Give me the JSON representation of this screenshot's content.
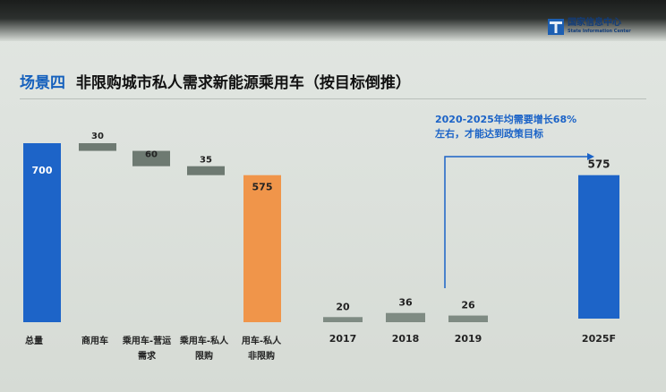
{
  "logo": {
    "name_cn": "国家信息中心",
    "name_en": "State Information Center"
  },
  "header": {
    "scene_label": "场景四",
    "title": "非限购城市私人需求新能源乘用车（按目标倒推）"
  },
  "note": {
    "line1": "2020-2025年均需要增长68%",
    "line2": "左右，才能达到政策目标"
  },
  "colors": {
    "total_bar": "#1d64c8",
    "step_bar": "#6e7a72",
    "result_bar": "#f0954a",
    "annual_bar": "#7f8b83",
    "target_bar": "#1d64c8",
    "note_text": "#1b63c7"
  },
  "chart_data": [
    {
      "type": "bar",
      "subtype": "waterfall",
      "categories": [
        "总量",
        "商用车",
        "乘用车-营运\n需求",
        "乘用车-私人\n限购",
        "用车-私人\n非限购"
      ],
      "values": [
        700,
        30,
        60,
        35,
        575
      ],
      "steps": [
        {
          "kind": "total",
          "value": 700,
          "label": "700"
        },
        {
          "kind": "decrease",
          "value": 30,
          "label": "30"
        },
        {
          "kind": "decrease",
          "value": 60,
          "label": "60"
        },
        {
          "kind": "decrease",
          "value": 35,
          "label": "35"
        },
        {
          "kind": "result",
          "value": 575,
          "label": "575"
        }
      ],
      "ylim": [
        0,
        700
      ]
    },
    {
      "type": "bar",
      "categories": [
        "2017",
        "2018",
        "2019",
        "2025F"
      ],
      "values": [
        20,
        36,
        26,
        575
      ],
      "labels": [
        "20",
        "36",
        "26",
        "575"
      ],
      "ylim": [
        0,
        700
      ]
    }
  ]
}
